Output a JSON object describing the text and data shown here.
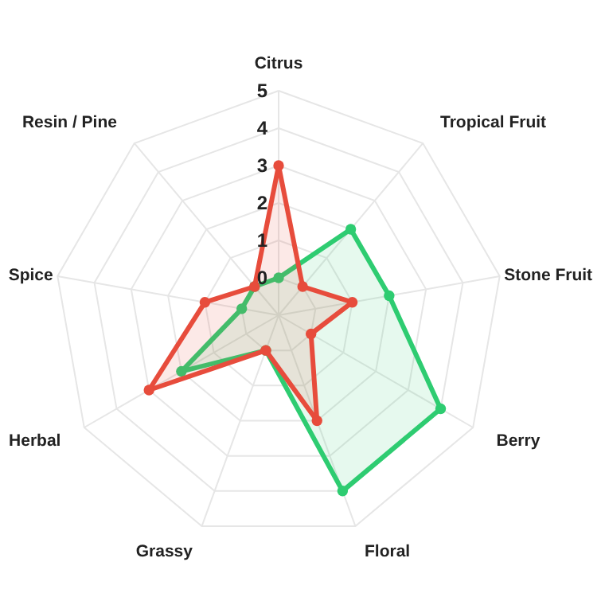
{
  "chart_data": {
    "type": "radar",
    "categories": [
      "Citrus",
      "Tropical Fruit",
      "Stone Fruit",
      "Berry",
      "Floral",
      "Grassy",
      "Herbal",
      "Spice",
      "Resin / Pine"
    ],
    "series": [
      {
        "color": "#2ecc71",
        "values": [
          0,
          2,
          2,
          4,
          4,
          0,
          2,
          0,
          0
        ]
      },
      {
        "color": "#e74c3c",
        "values": [
          3,
          0,
          1,
          0,
          2,
          0,
          3,
          1,
          0
        ]
      }
    ],
    "ylim": [
      -1,
      5
    ],
    "yticks": [
      0,
      1,
      2,
      3,
      4,
      5
    ],
    "grid": true,
    "marker": "circle"
  }
}
